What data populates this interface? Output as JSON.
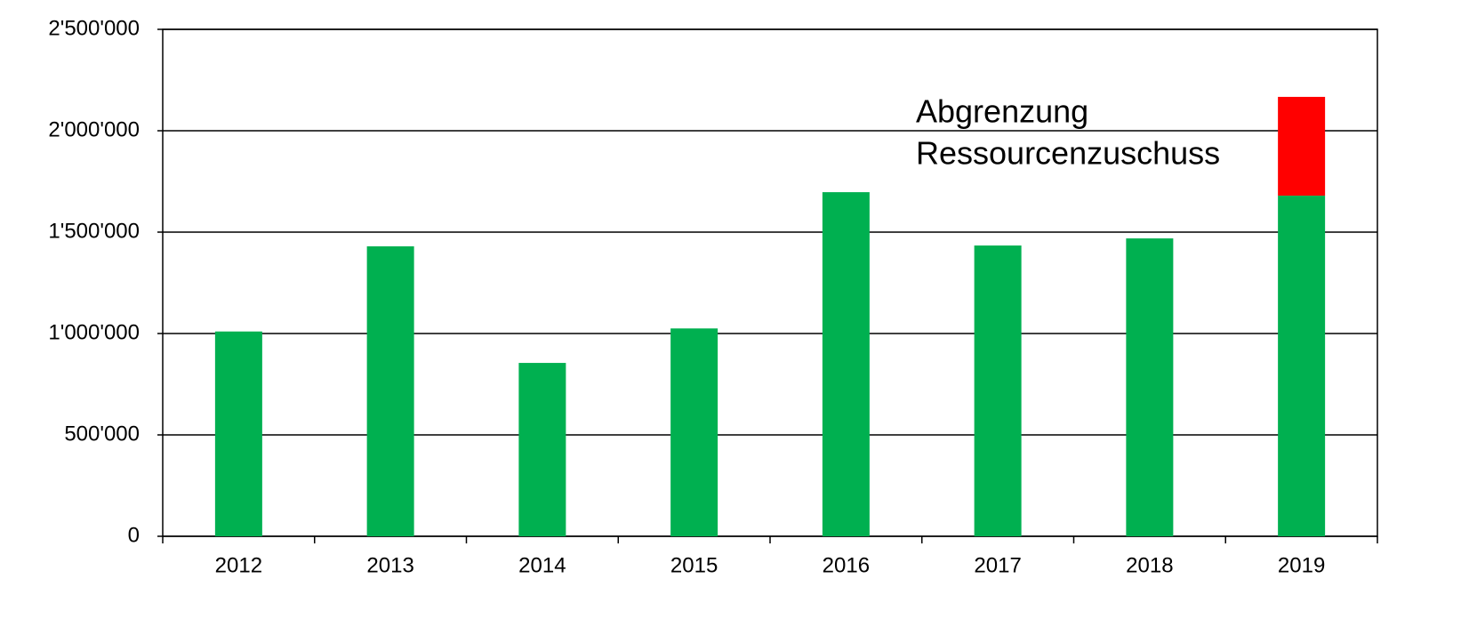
{
  "chart_data": {
    "type": "stacked_bar",
    "categories": [
      "2012",
      "2013",
      "2014",
      "2015",
      "2016",
      "2017",
      "2018",
      "2019"
    ],
    "series": [
      {
        "color": "#00b050",
        "values": [
          1010000,
          1430000,
          855000,
          1025000,
          1697000,
          1434000,
          1469000,
          1680000
        ]
      },
      {
        "color": "#ff0000",
        "values": [
          null,
          null,
          null,
          null,
          null,
          null,
          null,
          487000
        ]
      }
    ],
    "annotation": [
      "Abgrenzung",
      "Ressourcenzuschuss"
    ],
    "ylim": [
      0,
      2500000
    ],
    "yticks": [
      0,
      {
        "value": 500000,
        "label": "500'000"
      },
      {
        "value": 1000000,
        "label": "1'000'000"
      },
      {
        "value": 1500000,
        "label": "1'500'000"
      },
      {
        "value": 2000000,
        "label": "2'000'000"
      },
      {
        "value": 2500000,
        "label": "2'500'000"
      }
    ],
    "grid": true
  }
}
